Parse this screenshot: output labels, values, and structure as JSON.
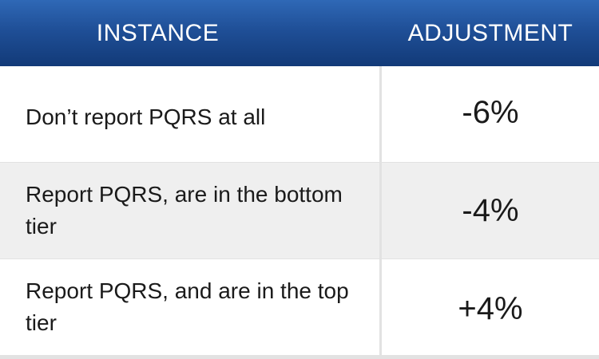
{
  "table": {
    "headers": {
      "instance": "INSTANCE",
      "adjustment": "ADJUSTMENT"
    },
    "rows": [
      {
        "instance": "Don’t report PQRS at all",
        "adjustment": "-6%"
      },
      {
        "instance": "Report PQRS, are in the bottom tier",
        "adjustment": "-4%"
      },
      {
        "instance": "Report PQRS, and are in the top tier",
        "adjustment": "+4%"
      }
    ]
  },
  "colors": {
    "header_top": "#2f68b6",
    "header_bottom": "#123a78",
    "row_alt": "#efefef",
    "grid": "#e2e2e2"
  }
}
